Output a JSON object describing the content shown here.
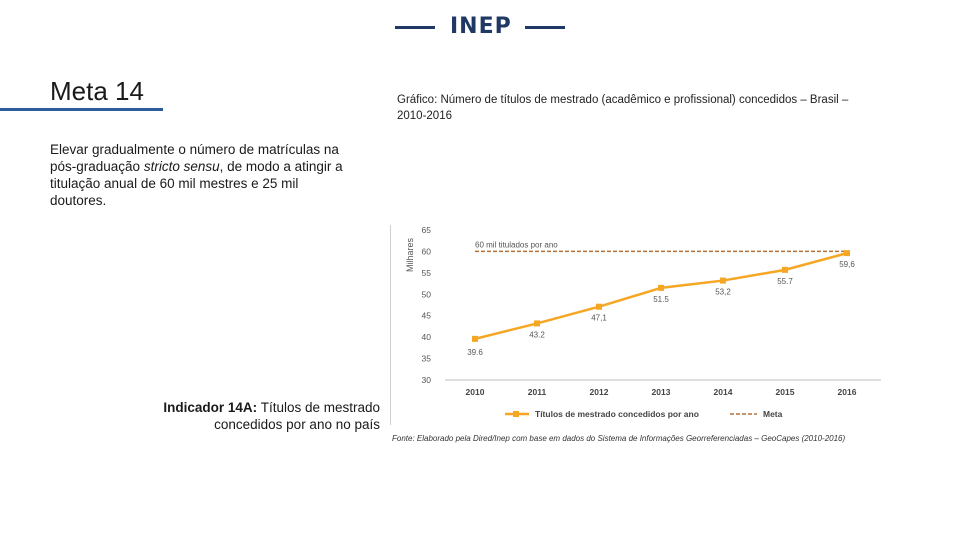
{
  "header": {
    "logo_text": "INEP"
  },
  "meta": {
    "title": "Meta 14",
    "text_before": "Elevar gradualmente o número de matrículas na pós-graduação ",
    "text_italic": "stricto sensu",
    "text_after": ", de modo a atingir a titulação anual de 60 mil mestres e 25 mil doutores."
  },
  "indicator": {
    "label": "Indicador 14A:",
    "text": " Títulos de mestrado concedidos por ano no país"
  },
  "chart_caption": "Gráfico: Número de títulos de mestrado (acadêmico e profissional) concedidos – Brasil – 2010-2016",
  "source": "Fonte: Elaborado pela Dired/Inep com base em dados do Sistema de Informações Georreferenciadas – GeoCapes (2010-2016)",
  "chart_data": {
    "type": "line",
    "title": "",
    "ylabel": "Milhares",
    "xlabel": "",
    "x": [
      "2010",
      "2011",
      "2012",
      "2013",
      "2014",
      "2015",
      "2016"
    ],
    "ylim": [
      30,
      65
    ],
    "yticks": [
      30,
      35,
      40,
      45,
      50,
      55,
      60,
      65
    ],
    "grid": false,
    "legend": "bottom",
    "series": [
      {
        "name": "Títulos de mestrado concedidos por ano",
        "values": [
          39.6,
          43.2,
          47.1,
          51.5,
          53.2,
          55.7,
          59.6
        ],
        "labels": [
          "39.6",
          "43.2",
          "47,1",
          "51.5",
          "53,2",
          "55.7",
          "59,6"
        ],
        "color": "#f5a623"
      },
      {
        "name": "Meta",
        "values": [
          60,
          60,
          60,
          60,
          60,
          60,
          60
        ],
        "color": "#b5713a",
        "style": "dashed"
      }
    ],
    "annotation": {
      "text": "60 mil titulados por ano",
      "x": "2010",
      "y": 60
    }
  }
}
